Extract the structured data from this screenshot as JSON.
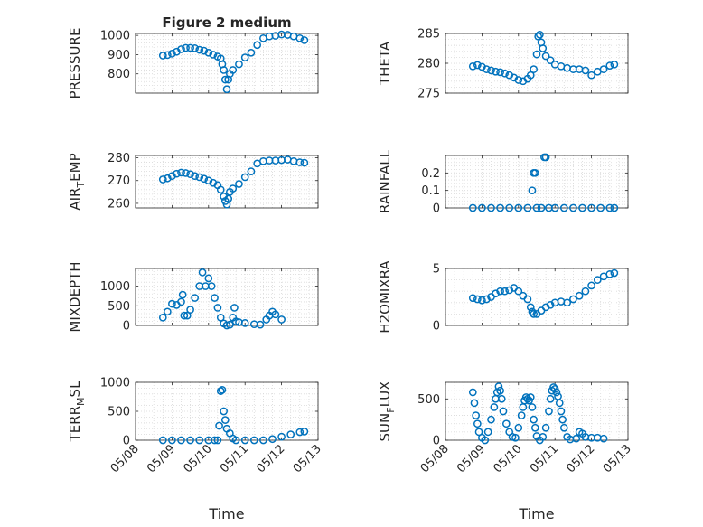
{
  "figure": {
    "title": "Figure 2 medium",
    "xlabel": "Time",
    "x_tick_labels": [
      "05/08",
      "05/09",
      "05/10",
      "05/11",
      "05/12",
      "05/13"
    ]
  },
  "style": {
    "marker_color": "#0072BD",
    "axis_color": "#262626",
    "grid_color": "#d9d9d9"
  },
  "chart_data": [
    {
      "type": "scatter",
      "panel": "pressure",
      "ylabel_main": "PRESSURE",
      "ylabel_sub": "",
      "ylim": [
        700,
        1010
      ],
      "yticks": [
        800,
        900,
        1000
      ],
      "ytick_labels": [
        "800",
        "900",
        "1000"
      ],
      "xlim": [
        "05/08",
        "05/13"
      ],
      "grid": true,
      "points": [
        [
          "05/08 18:00",
          895
        ],
        [
          "05/08 21:00",
          898
        ],
        [
          "05/09 00:00",
          905
        ],
        [
          "05/09 03:00",
          915
        ],
        [
          "05/09 06:00",
          928
        ],
        [
          "05/09 09:00",
          935
        ],
        [
          "05/09 12:00",
          935
        ],
        [
          "05/09 15:00",
          933
        ],
        [
          "05/09 18:00",
          925
        ],
        [
          "05/09 21:00",
          920
        ],
        [
          "05/10 00:00",
          910
        ],
        [
          "05/10 03:00",
          900
        ],
        [
          "05/10 06:00",
          890
        ],
        [
          "05/10 08:00",
          880
        ],
        [
          "05/10 09:00",
          850
        ],
        [
          "05/10 10:00",
          820
        ],
        [
          "05/10 11:00",
          770
        ],
        [
          "05/10 12:00",
          720
        ],
        [
          "05/10 13:00",
          770
        ],
        [
          "05/10 14:00",
          800
        ],
        [
          "05/10 16:00",
          820
        ],
        [
          "05/10 20:00",
          850
        ],
        [
          "05/11 00:00",
          885
        ],
        [
          "05/11 04:00",
          910
        ],
        [
          "05/11 08:00",
          950
        ],
        [
          "05/11 12:00",
          985
        ],
        [
          "05/11 16:00",
          995
        ],
        [
          "05/11 20:00",
          998
        ],
        [
          "05/12 00:00",
          1005
        ],
        [
          "05/12 04:00",
          1003
        ],
        [
          "05/12 08:00",
          995
        ],
        [
          "05/12 12:00",
          985
        ],
        [
          "05/12 15:00",
          975
        ]
      ]
    },
    {
      "type": "scatter",
      "panel": "theta",
      "ylabel_main": "THETA",
      "ylabel_sub": "",
      "ylim": [
        275,
        285
      ],
      "yticks": [
        275,
        280,
        285
      ],
      "ytick_labels": [
        "275",
        "280",
        "285"
      ],
      "xlim": [
        "05/08",
        "05/13"
      ],
      "grid": true,
      "points": [
        [
          "05/08 18:00",
          279.5
        ],
        [
          "05/08 21:00",
          279.7
        ],
        [
          "05/09 00:00",
          279.4
        ],
        [
          "05/09 03:00",
          279.0
        ],
        [
          "05/09 06:00",
          278.8
        ],
        [
          "05/09 09:00",
          278.6
        ],
        [
          "05/09 12:00",
          278.5
        ],
        [
          "05/09 15:00",
          278.3
        ],
        [
          "05/09 18:00",
          278.0
        ],
        [
          "05/09 21:00",
          277.6
        ],
        [
          "05/10 00:00",
          277.2
        ],
        [
          "05/10 03:00",
          277.0
        ],
        [
          "05/10 06:00",
          277.4
        ],
        [
          "05/10 08:00",
          278.0
        ],
        [
          "05/10 10:00",
          279.0
        ],
        [
          "05/10 12:00",
          281.5
        ],
        [
          "05/10 13:00",
          284.5
        ],
        [
          "05/10 14:00",
          284.8
        ],
        [
          "05/10 15:00",
          283.5
        ],
        [
          "05/10 16:00",
          282.5
        ],
        [
          "05/10 18:00",
          281.2
        ],
        [
          "05/10 21:00",
          280.5
        ],
        [
          "05/11 00:00",
          279.8
        ],
        [
          "05/11 04:00",
          279.5
        ],
        [
          "05/11 08:00",
          279.2
        ],
        [
          "05/11 12:00",
          279.0
        ],
        [
          "05/11 16:00",
          279.0
        ],
        [
          "05/11 20:00",
          278.8
        ],
        [
          "05/12 00:00",
          278.0
        ],
        [
          "05/12 04:00",
          278.6
        ],
        [
          "05/12 08:00",
          279.0
        ],
        [
          "05/12 12:00",
          279.6
        ],
        [
          "05/12 15:00",
          279.8
        ]
      ]
    },
    {
      "type": "scatter",
      "panel": "air_temp",
      "ylabel_main": "AIR",
      "ylabel_sub": "T",
      "ylabel_tail": "EMP",
      "ylim": [
        258,
        281
      ],
      "yticks": [
        260,
        270,
        280
      ],
      "ytick_labels": [
        "260",
        "270",
        "280"
      ],
      "xlim": [
        "05/08",
        "05/13"
      ],
      "grid": true,
      "points": [
        [
          "05/08 18:00",
          270.5
        ],
        [
          "05/08 21:00",
          271.0
        ],
        [
          "05/09 00:00",
          272.0
        ],
        [
          "05/09 03:00",
          273.0
        ],
        [
          "05/09 06:00",
          273.5
        ],
        [
          "05/09 09:00",
          273.3
        ],
        [
          "05/09 12:00",
          272.8
        ],
        [
          "05/09 15:00",
          272.0
        ],
        [
          "05/09 18:00",
          271.5
        ],
        [
          "05/09 21:00",
          270.8
        ],
        [
          "05/10 00:00",
          270.0
        ],
        [
          "05/10 03:00",
          269.0
        ],
        [
          "05/10 06:00",
          268.0
        ],
        [
          "05/10 08:00",
          266.0
        ],
        [
          "05/10 10:00",
          263.0
        ],
        [
          "05/10 11:00",
          261.0
        ],
        [
          "05/10 12:00",
          259.5
        ],
        [
          "05/10 13:00",
          262.0
        ],
        [
          "05/10 14:00",
          265.0
        ],
        [
          "05/10 16:00",
          266.5
        ],
        [
          "05/10 20:00",
          268.5
        ],
        [
          "05/11 00:00",
          271.5
        ],
        [
          "05/11 04:00",
          274.0
        ],
        [
          "05/11 08:00",
          277.5
        ],
        [
          "05/11 12:00",
          278.5
        ],
        [
          "05/11 16:00",
          278.8
        ],
        [
          "05/11 20:00",
          278.8
        ],
        [
          "05/12 00:00",
          279.0
        ],
        [
          "05/12 04:00",
          279.2
        ],
        [
          "05/12 08:00",
          278.5
        ],
        [
          "05/12 12:00",
          278.0
        ],
        [
          "05/12 15:00",
          277.8
        ]
      ]
    },
    {
      "type": "scatter",
      "panel": "rainfall",
      "ylabel_main": "RAINFALL",
      "ylabel_sub": "",
      "ylim": [
        0,
        0.3
      ],
      "yticks": [
        0,
        0.1,
        0.2
      ],
      "ytick_labels": [
        "0",
        "0.1",
        "0.2"
      ],
      "xlim": [
        "05/08",
        "05/13"
      ],
      "grid": true,
      "points": [
        [
          "05/08 18:00",
          0
        ],
        [
          "05/09 00:00",
          0
        ],
        [
          "05/09 06:00",
          0
        ],
        [
          "05/09 12:00",
          0
        ],
        [
          "05/09 18:00",
          0
        ],
        [
          "05/10 00:00",
          0
        ],
        [
          "05/10 06:00",
          0
        ],
        [
          "05/10 09:00",
          0.1
        ],
        [
          "05/10 10:00",
          0.2
        ],
        [
          "05/10 11:00",
          0.2
        ],
        [
          "05/10 12:00",
          0
        ],
        [
          "05/10 15:00",
          0
        ],
        [
          "05/10 17:00",
          0.29
        ],
        [
          "05/10 18:00",
          0.29
        ],
        [
          "05/10 20:00",
          0
        ],
        [
          "05/11 00:00",
          0
        ],
        [
          "05/11 06:00",
          0
        ],
        [
          "05/11 12:00",
          0
        ],
        [
          "05/11 18:00",
          0
        ],
        [
          "05/12 00:00",
          0
        ],
        [
          "05/12 06:00",
          0
        ],
        [
          "05/12 12:00",
          0
        ],
        [
          "05/12 15:00",
          0
        ]
      ]
    },
    {
      "type": "scatter",
      "panel": "mixdepth",
      "ylabel_main": "MIXDEPTH",
      "ylabel_sub": "",
      "ylim": [
        0,
        1450
      ],
      "yticks": [
        0,
        500,
        1000
      ],
      "ytick_labels": [
        "0",
        "500",
        "1000"
      ],
      "xlim": [
        "05/08",
        "05/13"
      ],
      "grid": true,
      "points": [
        [
          "05/08 18:00",
          200
        ],
        [
          "05/08 21:00",
          350
        ],
        [
          "05/09 00:00",
          550
        ],
        [
          "05/09 03:00",
          520
        ],
        [
          "05/09 06:00",
          600
        ],
        [
          "05/09 07:00",
          780
        ],
        [
          "05/09 08:00",
          250
        ],
        [
          "05/09 10:00",
          250
        ],
        [
          "05/09 12:00",
          400
        ],
        [
          "05/09 15:00",
          700
        ],
        [
          "05/09 18:00",
          1000
        ],
        [
          "05/09 20:00",
          1350
        ],
        [
          "05/09 22:00",
          1000
        ],
        [
          "05/10 00:00",
          1200
        ],
        [
          "05/10 02:00",
          1000
        ],
        [
          "05/10 04:00",
          700
        ],
        [
          "05/10 06:00",
          450
        ],
        [
          "05/10 08:00",
          200
        ],
        [
          "05/10 10:00",
          50
        ],
        [
          "05/10 12:00",
          0
        ],
        [
          "05/10 14:00",
          20
        ],
        [
          "05/10 16:00",
          200
        ],
        [
          "05/10 17:00",
          450
        ],
        [
          "05/10 18:00",
          100
        ],
        [
          "05/10 20:00",
          80
        ],
        [
          "05/11 00:00",
          60
        ],
        [
          "05/11 06:00",
          30
        ],
        [
          "05/11 10:00",
          20
        ],
        [
          "05/11 14:00",
          150
        ],
        [
          "05/11 16:00",
          250
        ],
        [
          "05/11 18:00",
          350
        ],
        [
          "05/11 20:00",
          280
        ],
        [
          "05/12 00:00",
          150
        ]
      ]
    },
    {
      "type": "scatter",
      "panel": "h2omixra",
      "ylabel_main": "H2OMIXRA",
      "ylabel_sub": "",
      "ylim": [
        0,
        5
      ],
      "yticks": [
        0,
        5
      ],
      "ytick_labels": [
        "0",
        "5"
      ],
      "xlim": [
        "05/08",
        "05/13"
      ],
      "grid": true,
      "points": [
        [
          "05/08 18:00",
          2.4
        ],
        [
          "05/08 21:00",
          2.3
        ],
        [
          "05/09 00:00",
          2.2
        ],
        [
          "05/09 03:00",
          2.3
        ],
        [
          "05/09 06:00",
          2.5
        ],
        [
          "05/09 09:00",
          2.8
        ],
        [
          "05/09 12:00",
          3.0
        ],
        [
          "05/09 15:00",
          3.0
        ],
        [
          "05/09 18:00",
          3.1
        ],
        [
          "05/09 21:00",
          3.3
        ],
        [
          "05/10 00:00",
          3.0
        ],
        [
          "05/10 03:00",
          2.6
        ],
        [
          "05/10 06:00",
          2.3
        ],
        [
          "05/10 08:00",
          1.6
        ],
        [
          "05/10 09:00",
          1.2
        ],
        [
          "05/10 10:00",
          1.0
        ],
        [
          "05/10 12:00",
          1.0
        ],
        [
          "05/10 15:00",
          1.3
        ],
        [
          "05/10 18:00",
          1.6
        ],
        [
          "05/10 21:00",
          1.8
        ],
        [
          "05/11 00:00",
          2.0
        ],
        [
          "05/11 04:00",
          2.1
        ],
        [
          "05/11 08:00",
          2.0
        ],
        [
          "05/11 12:00",
          2.3
        ],
        [
          "05/11 16:00",
          2.6
        ],
        [
          "05/11 20:00",
          3.0
        ],
        [
          "05/12 00:00",
          3.5
        ],
        [
          "05/12 04:00",
          4.0
        ],
        [
          "05/12 08:00",
          4.3
        ],
        [
          "05/12 12:00",
          4.5
        ],
        [
          "05/12 15:00",
          4.6
        ]
      ]
    },
    {
      "type": "scatter",
      "panel": "terr_msl",
      "ylabel_main": "TERR",
      "ylabel_sub": "M",
      "ylabel_tail": "SL",
      "ylim": [
        0,
        1000
      ],
      "yticks": [
        0,
        500,
        1000
      ],
      "ytick_labels": [
        "0",
        "500",
        "1000"
      ],
      "xlim": [
        "05/08",
        "05/13"
      ],
      "grid": true,
      "points": [
        [
          "05/08 18:00",
          0
        ],
        [
          "05/09 00:00",
          0
        ],
        [
          "05/09 06:00",
          0
        ],
        [
          "05/09 12:00",
          0
        ],
        [
          "05/09 18:00",
          0
        ],
        [
          "05/10 00:00",
          0
        ],
        [
          "05/10 04:00",
          0
        ],
        [
          "05/10 06:00",
          0
        ],
        [
          "05/10 07:00",
          250
        ],
        [
          "05/10 08:00",
          850
        ],
        [
          "05/10 09:00",
          870
        ],
        [
          "05/10 10:00",
          500
        ],
        [
          "05/10 11:00",
          350
        ],
        [
          "05/10 12:00",
          200
        ],
        [
          "05/10 14:00",
          120
        ],
        [
          "05/10 16:00",
          30
        ],
        [
          "05/10 18:00",
          0
        ],
        [
          "05/11 00:00",
          0
        ],
        [
          "05/11 06:00",
          0
        ],
        [
          "05/11 12:00",
          0
        ],
        [
          "05/11 18:00",
          20
        ],
        [
          "05/12 00:00",
          60
        ],
        [
          "05/12 06:00",
          100
        ],
        [
          "05/12 12:00",
          140
        ],
        [
          "05/12 15:00",
          150
        ]
      ]
    },
    {
      "type": "scatter",
      "panel": "sun_flux",
      "ylabel_main": "SUN",
      "ylabel_sub": "F",
      "ylabel_tail": "LUX",
      "ylim": [
        0,
        700
      ],
      "yticks": [
        0,
        500
      ],
      "ytick_labels": [
        "0",
        "500"
      ],
      "xlim": [
        "05/08",
        "05/13"
      ],
      "grid": true,
      "points": [
        [
          "05/08 18:00",
          580
        ],
        [
          "05/08 19:00",
          450
        ],
        [
          "05/08 20:00",
          300
        ],
        [
          "05/08 21:00",
          200
        ],
        [
          "05/08 22:00",
          100
        ],
        [
          "05/09 00:00",
          30
        ],
        [
          "05/09 02:00",
          0
        ],
        [
          "05/09 04:00",
          100
        ],
        [
          "05/09 06:00",
          250
        ],
        [
          "05/09 08:00",
          400
        ],
        [
          "05/09 09:00",
          500
        ],
        [
          "05/09 10:00",
          580
        ],
        [
          "05/09 11:00",
          650
        ],
        [
          "05/09 12:00",
          600
        ],
        [
          "05/09 13:00",
          500
        ],
        [
          "05/09 14:00",
          350
        ],
        [
          "05/09 16:00",
          200
        ],
        [
          "05/09 18:00",
          100
        ],
        [
          "05/09 20:00",
          40
        ],
        [
          "05/09 22:00",
          30
        ],
        [
          "05/10 00:00",
          150
        ],
        [
          "05/10 02:00",
          300
        ],
        [
          "05/10 03:00",
          400
        ],
        [
          "05/10 04:00",
          480
        ],
        [
          "05/10 05:00",
          520
        ],
        [
          "05/10 06:00",
          500
        ],
        [
          "05/10 07:00",
          480
        ],
        [
          "05/10 08:00",
          520
        ],
        [
          "05/10 09:00",
          400
        ],
        [
          "05/10 10:00",
          250
        ],
        [
          "05/10 11:00",
          150
        ],
        [
          "05/10 12:00",
          50
        ],
        [
          "05/10 14:00",
          0
        ],
        [
          "05/10 16:00",
          40
        ],
        [
          "05/10 18:00",
          150
        ],
        [
          "05/10 20:00",
          350
        ],
        [
          "05/10 21:00",
          500
        ],
        [
          "05/10 22:00",
          600
        ],
        [
          "05/10 23:00",
          640
        ],
        [
          "05/11 00:00",
          620
        ],
        [
          "05/11 01:00",
          580
        ],
        [
          "05/11 02:00",
          530
        ],
        [
          "05/11 03:00",
          450
        ],
        [
          "05/11 04:00",
          350
        ],
        [
          "05/11 05:00",
          250
        ],
        [
          "05/11 06:00",
          150
        ],
        [
          "05/11 08:00",
          40
        ],
        [
          "05/11 10:00",
          10
        ],
        [
          "05/11 14:00",
          20
        ],
        [
          "05/11 16:00",
          100
        ],
        [
          "05/11 18:00",
          80
        ],
        [
          "05/11 20:00",
          40
        ],
        [
          "05/12 00:00",
          30
        ],
        [
          "05/12 04:00",
          30
        ],
        [
          "05/12 08:00",
          20
        ]
      ]
    }
  ]
}
